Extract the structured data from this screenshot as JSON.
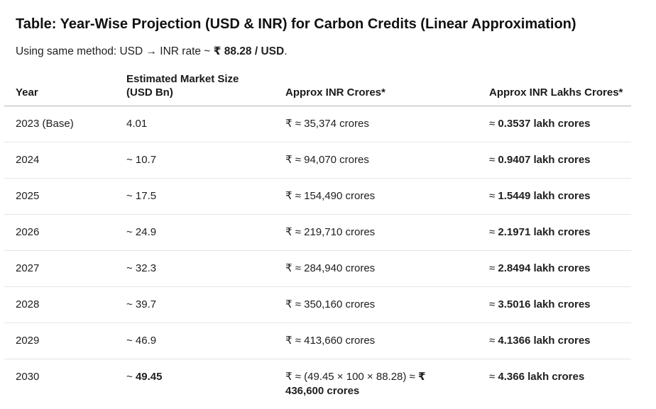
{
  "header": {
    "title": "Table: Year-Wise Projection (USD & INR) for Carbon Credits (Linear Approximation)",
    "subtitle": {
      "prefix": "Using same method: USD → INR rate ~ ",
      "bold": "₹ 88.28 / USD",
      "suffix": "."
    }
  },
  "colors": {
    "text": "#1a1a1a",
    "header_border": "#b3b3b3",
    "row_divider": "#e5e5e5",
    "background": "#ffffff"
  },
  "table": {
    "columns": [
      {
        "label": "Year"
      },
      {
        "label": "Estimated Market Size\n(USD Bn)"
      },
      {
        "label": "Approx INR Crores*"
      },
      {
        "label": "Approx INR Lakhs Crores*"
      }
    ],
    "rows": [
      {
        "year": "2023 (Base)",
        "usd": "4.01",
        "usd_bold": "",
        "inr": "₹ ≈ 35,374 crores",
        "inr_bold": "",
        "lakh": "≈ ",
        "lakh_bold": "0.3537 lakh crores"
      },
      {
        "year": "2024",
        "usd": "~ 10.7",
        "usd_bold": "",
        "inr": "₹ ≈ 94,070 crores",
        "inr_bold": "",
        "lakh": "≈ ",
        "lakh_bold": "0.9407 lakh crores"
      },
      {
        "year": "2025",
        "usd": "~ 17.5",
        "usd_bold": "",
        "inr": "₹ ≈ 154,490 crores",
        "inr_bold": "",
        "lakh": "≈ ",
        "lakh_bold": "1.5449 lakh crores"
      },
      {
        "year": "2026",
        "usd": "~ 24.9",
        "usd_bold": "",
        "inr": "₹ ≈ 219,710 crores",
        "inr_bold": "",
        "lakh": "≈ ",
        "lakh_bold": "2.1971 lakh crores"
      },
      {
        "year": "2027",
        "usd": "~ 32.3",
        "usd_bold": "",
        "inr": "₹ ≈ 284,940 crores",
        "inr_bold": "",
        "lakh": "≈ ",
        "lakh_bold": "2.8494 lakh crores"
      },
      {
        "year": "2028",
        "usd": "~ 39.7",
        "usd_bold": "",
        "inr": "₹ ≈ 350,160 crores",
        "inr_bold": "",
        "lakh": "≈ ",
        "lakh_bold": "3.5016 lakh crores"
      },
      {
        "year": "2029",
        "usd": "~ 46.9",
        "usd_bold": "",
        "inr": "₹ ≈ 413,660 crores",
        "inr_bold": "",
        "lakh": "≈ ",
        "lakh_bold": "4.1366 lakh crores"
      },
      {
        "year": "2030",
        "usd": "~ ",
        "usd_bold": "49.45",
        "inr": "₹ ≈ (49.45 × 100 × 88.28) ≈ ",
        "inr_bold": "₹\n436,600 crores",
        "lakh": "≈ ",
        "lakh_bold": "4.366 lakh crores"
      }
    ]
  }
}
